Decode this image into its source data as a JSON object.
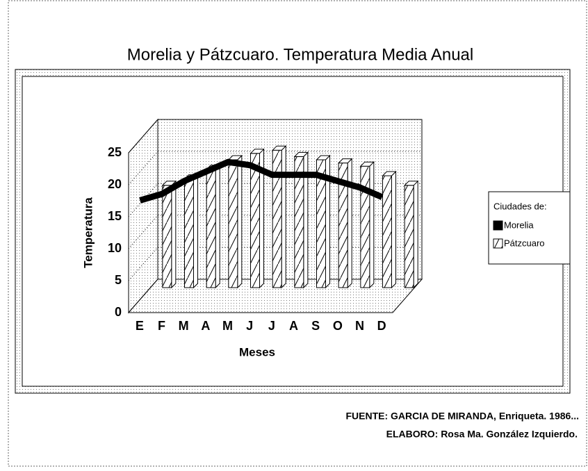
{
  "chart_data": {
    "type": "bar_line_3d",
    "title": "Morelia y Pátzcuaro. Temperatura Media Anual",
    "xlabel": "Meses",
    "ylabel": "Temperatura",
    "categories": [
      "E",
      "F",
      "M",
      "A",
      "M",
      "J",
      "J",
      "A",
      "S",
      "O",
      "N",
      "D"
    ],
    "legend_title": "Ciudades de:",
    "series": [
      {
        "name": "Morelia",
        "color": "#000000",
        "kind": "line",
        "values": [
          16,
          17,
          19,
          20.5,
          22,
          21.5,
          20,
          20,
          20,
          19,
          18,
          16.5
        ]
      },
      {
        "name": "Pátzcuaro",
        "color": "#ffffff",
        "kind": "bar",
        "values": [
          16,
          17,
          18.5,
          20,
          21,
          21.5,
          20.5,
          20,
          19.5,
          19,
          17.5,
          16
        ]
      }
    ],
    "ylim": [
      0,
      25
    ],
    "yticks": [
      0,
      5,
      10,
      15,
      20,
      25
    ],
    "grid": true,
    "legend": "right",
    "notes": [
      "FUENTE: GARCIA DE MIRANDA, Enriqueta. 1986...",
      "ELABORO: Rosa Ma. González Izquierdo."
    ]
  }
}
